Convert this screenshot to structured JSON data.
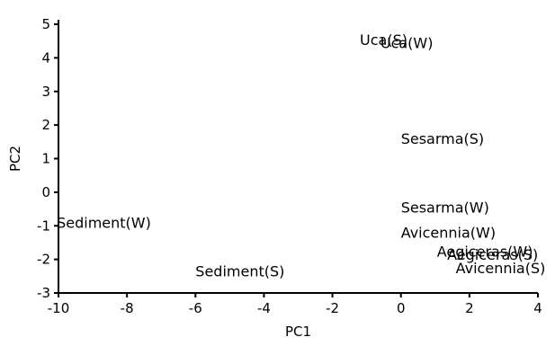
{
  "chart_data": {
    "type": "scatter",
    "title": "",
    "xlabel": "PC1",
    "ylabel": "PC2",
    "xlim": [
      -10,
      4
    ],
    "ylim": [
      -3,
      5
    ],
    "xticks": [
      -10,
      -8,
      -6,
      -4,
      -2,
      0,
      2,
      4
    ],
    "yticks": [
      -3,
      -2,
      -1,
      0,
      1,
      2,
      3,
      4,
      5
    ],
    "grid": false,
    "legend": "none",
    "points": [
      {
        "label": "Uca(S)",
        "x": -1.2,
        "y": 4.55
      },
      {
        "label": "Uca(W)",
        "x": -0.6,
        "y": 4.45
      },
      {
        "label": "Sesarma(S)",
        "x": 0.0,
        "y": 1.6
      },
      {
        "label": "Sesarma(W)",
        "x": 0.0,
        "y": -0.45
      },
      {
        "label": "Avicennia(W)",
        "x": 0.0,
        "y": -1.2
      },
      {
        "label": "Aegiceras(W)",
        "x": 1.05,
        "y": -1.75
      },
      {
        "label": "Aegiceras(S)",
        "x": 1.35,
        "y": -1.85
      },
      {
        "label": "Avicennia(S)",
        "x": 1.6,
        "y": -2.25
      },
      {
        "label": "Sediment(W)",
        "x": -10.05,
        "y": -0.9
      },
      {
        "label": "Sediment(S)",
        "x": -6.0,
        "y": -2.35
      }
    ]
  }
}
